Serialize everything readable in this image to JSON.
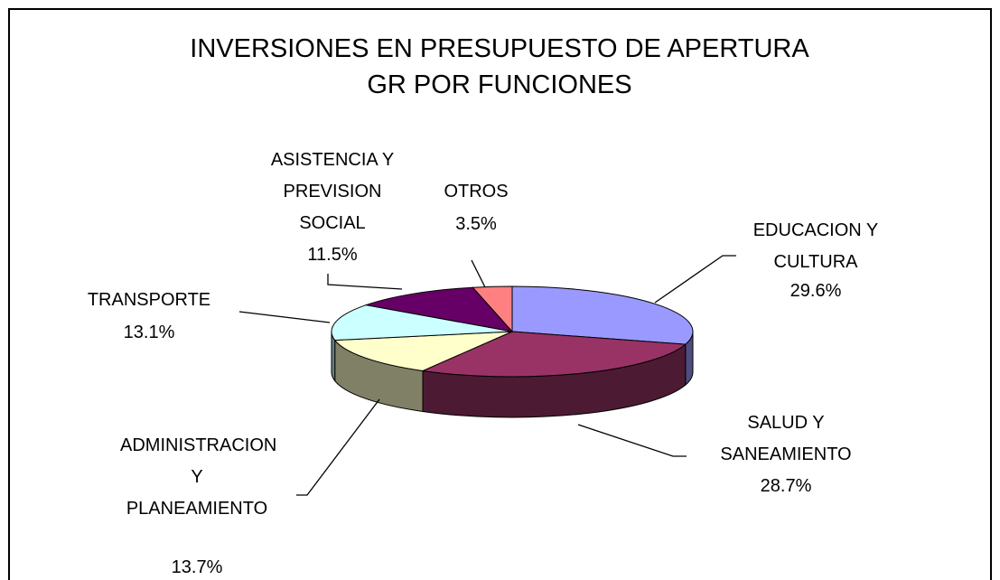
{
  "chart_data": {
    "type": "pie",
    "title": "INVERSIONES EN PRESUPUESTO DE APERTURA GR POR FUNCIONES",
    "categories": [
      "EDUCACION Y CULTURA",
      "SALUD Y SANEAMIENTO",
      "ADMINISTRACION Y PLANEAMIENTO",
      "TRANSPORTE",
      "ASISTENCIA Y PREVISION SOCIAL",
      "OTROS"
    ],
    "values": [
      29.6,
      28.7,
      13.7,
      13.1,
      11.5,
      3.5
    ],
    "value_labels": [
      "29.6%",
      "28.7%",
      "13.7%",
      "13.1%",
      "11.5%",
      "3.5%"
    ],
    "colors": [
      "#9999ff",
      "#993366",
      "#ffffcc",
      "#ccffff",
      "#660066",
      "#ff8080"
    ]
  }
}
